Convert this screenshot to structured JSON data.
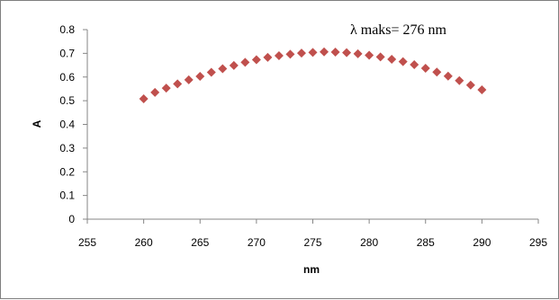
{
  "chart_data": {
    "type": "scatter",
    "title": "",
    "xlabel": "nm",
    "ylabel": "A",
    "xlim": [
      255,
      295
    ],
    "ylim": [
      0,
      0.8
    ],
    "xticks": [
      255,
      260,
      265,
      270,
      275,
      280,
      285,
      290,
      295
    ],
    "yticks": [
      0,
      0.1,
      0.2,
      0.3,
      0.4,
      0.5,
      0.6,
      0.7,
      0.8
    ],
    "grid": false,
    "legend": "none",
    "annotation": "λ maks= 276 nm",
    "marker": "diamond",
    "series_color": "#c0504d",
    "series": [
      {
        "x": [
          260,
          261,
          262,
          263,
          264,
          265,
          266,
          267,
          268,
          269,
          270,
          271,
          272,
          273,
          274,
          275,
          276,
          277,
          278,
          279,
          280,
          281,
          282,
          283,
          284,
          285,
          286,
          287,
          288,
          289,
          290
        ],
        "y": [
          0.508,
          0.535,
          0.553,
          0.571,
          0.588,
          0.603,
          0.62,
          0.635,
          0.649,
          0.662,
          0.673,
          0.683,
          0.69,
          0.696,
          0.701,
          0.704,
          0.706,
          0.705,
          0.703,
          0.698,
          0.692,
          0.685,
          0.675,
          0.665,
          0.652,
          0.637,
          0.621,
          0.604,
          0.585,
          0.566,
          0.546
        ]
      }
    ]
  }
}
